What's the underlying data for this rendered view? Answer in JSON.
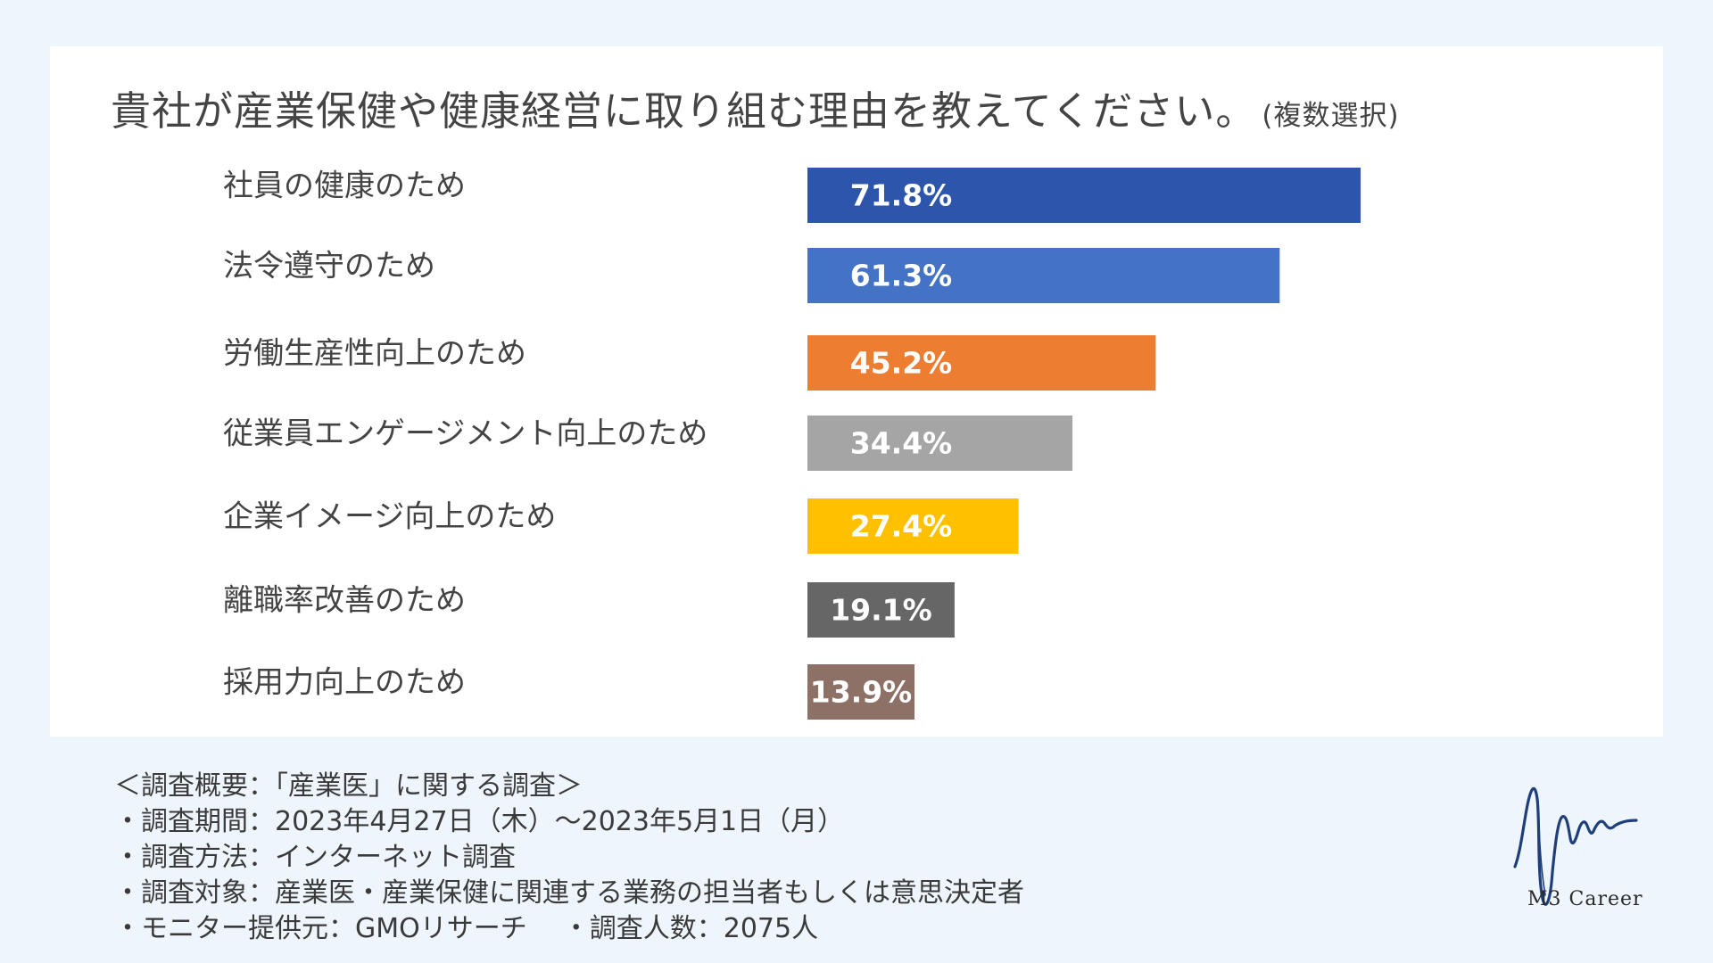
{
  "title": {
    "main": "貴社が産業保健や健康経営に取り組む理由を教えてください。",
    "note": "(複数選択)"
  },
  "chart_data": {
    "type": "bar",
    "orientation": "horizontal",
    "title": "貴社が産業保健や健康経営に取り組む理由を教えてください。(複数選択)",
    "categories": [
      "社員の健康のため",
      "法令遵守のため",
      "労働生産性向上のため",
      "従業員エンゲージメント向上のため",
      "企業イメージ向上のため",
      "離職率改善のため",
      "採用力向上のため"
    ],
    "values": [
      71.8,
      61.3,
      45.2,
      34.4,
      27.4,
      19.1,
      13.9
    ],
    "labels": [
      "71.8%",
      "61.3%",
      "45.2%",
      "34.4%",
      "27.4%",
      "19.1%",
      "13.9%"
    ],
    "colors": [
      "#2d55ab",
      "#4472c4",
      "#ed7d31",
      "#a5a5a5",
      "#ffc000",
      "#666666",
      "#8d7166"
    ],
    "unit": "%",
    "xlim": [
      0,
      100
    ],
    "legend": "none",
    "grid": false
  },
  "notes": {
    "header": "＜調査概要：「産業医」に関する調査＞",
    "period": "・調査期間：2023年4月27日（木）～2023年5月1日（月）",
    "method": "・調査方法：インターネット調査",
    "target": "・調査対象：産業医・産業保健に関連する業務の担当者もしくは意思決定者",
    "provider": "・モニター提供元：GMOリサーチ",
    "count": "・調査人数：2075人"
  },
  "logo": {
    "text": "M3 Career",
    "icon": "wave-signature-icon",
    "color": "#1f3f7a"
  }
}
